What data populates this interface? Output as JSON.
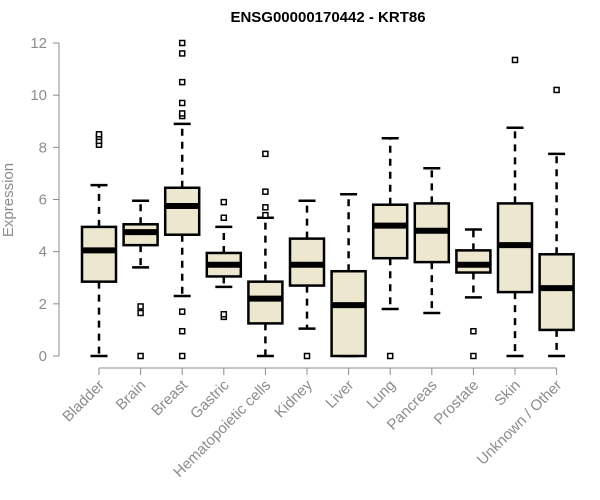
{
  "chart_data": {
    "type": "boxplot",
    "title": "ENSG00000170442 - KRT86",
    "xlabel": "",
    "ylabel": "Expression",
    "ylim": [
      0,
      12
    ],
    "yticks": [
      0,
      2,
      4,
      6,
      8,
      10,
      12
    ],
    "grid": false,
    "colors": {
      "box_fill": "#ede7cf",
      "box_stroke": "#000000",
      "axis": "#8c8c8c",
      "text": "#8c8c8c"
    },
    "categories": [
      "Bladder",
      "Brain",
      "Breast",
      "Gastric",
      "Hematopoietic cells",
      "Kidney",
      "Liver",
      "Lung",
      "Pancreas",
      "Prostate",
      "Skin",
      "Unknown / Other"
    ],
    "boxes": [
      {
        "whisker_low": 0,
        "q1": 2.85,
        "median": 4.05,
        "q3": 4.95,
        "whisker_high": 6.55,
        "outliers": [
          8.1,
          8.25,
          8.4,
          8.5
        ]
      },
      {
        "whisker_low": 3.4,
        "q1": 4.25,
        "median": 4.75,
        "q3": 5.05,
        "whisker_high": 5.95,
        "outliers": [
          0,
          1.65,
          1.9
        ]
      },
      {
        "whisker_low": 2.3,
        "q1": 4.65,
        "median": 5.75,
        "q3": 6.45,
        "whisker_high": 8.9,
        "outliers": [
          0,
          0.95,
          1.7,
          9.2,
          9.3,
          9.7,
          10.5,
          11.6,
          12.0
        ]
      },
      {
        "whisker_low": 2.65,
        "q1": 3.05,
        "median": 3.5,
        "q3": 3.95,
        "whisker_high": 4.95,
        "outliers": [
          1.5,
          1.6,
          5.3,
          5.9
        ]
      },
      {
        "whisker_low": 0,
        "q1": 1.25,
        "median": 2.2,
        "q3": 2.85,
        "whisker_high": 5.3,
        "outliers": [
          5.4,
          5.7,
          6.3,
          7.75
        ]
      },
      {
        "whisker_low": 1.05,
        "q1": 2.7,
        "median": 3.5,
        "q3": 4.5,
        "whisker_high": 5.95,
        "outliers": [
          0
        ]
      },
      {
        "whisker_low": 0,
        "q1": 0,
        "median": 1.95,
        "q3": 3.25,
        "whisker_high": 6.2,
        "outliers": []
      },
      {
        "whisker_low": 1.8,
        "q1": 3.75,
        "median": 5.0,
        "q3": 5.8,
        "whisker_high": 8.35,
        "outliers": [
          0
        ]
      },
      {
        "whisker_low": 1.65,
        "q1": 3.6,
        "median": 4.8,
        "q3": 5.85,
        "whisker_high": 7.2,
        "outliers": []
      },
      {
        "whisker_low": 2.25,
        "q1": 3.2,
        "median": 3.5,
        "q3": 4.05,
        "whisker_high": 4.85,
        "outliers": [
          0,
          0.95
        ]
      },
      {
        "whisker_low": 0,
        "q1": 2.45,
        "median": 4.25,
        "q3": 5.85,
        "whisker_high": 8.75,
        "outliers": [
          11.35
        ]
      },
      {
        "whisker_low": 0,
        "q1": 1.0,
        "median": 2.6,
        "q3": 3.9,
        "whisker_high": 7.75,
        "outliers": [
          10.2
        ]
      }
    ]
  }
}
